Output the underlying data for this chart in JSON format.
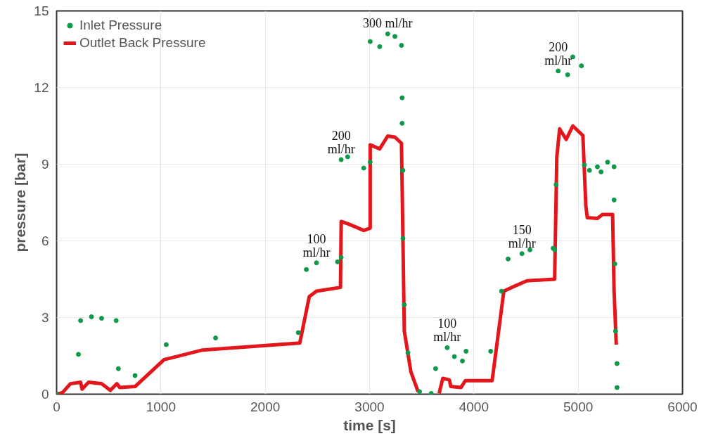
{
  "chart_data": {
    "type": "scatter",
    "xlabel": "time [s]",
    "ylabel": "pressure [bar]",
    "xlim": [
      0,
      6000
    ],
    "xticks": [
      0,
      1000,
      2000,
      3000,
      4000,
      5000,
      6000
    ],
    "ylim": [
      0,
      15
    ],
    "yticks": [
      0,
      3,
      6,
      9,
      12,
      15
    ],
    "grid": true,
    "legend": "top left",
    "series": [
      {
        "name": "Inlet Pressure",
        "color": "#0f9a4a",
        "marker": "circle",
        "x": [
          0,
          209,
          230,
          334,
          431,
          571,
          592,
          752,
          1051,
          1524,
          2317,
          2394,
          2491,
          2693,
          2728,
          2728,
          2790,
          2944,
          3006,
          3006,
          3097,
          3174,
          3243,
          3306,
          3312,
          3312,
          3320,
          3320,
          3333,
          3368,
          3479,
          3591,
          3633,
          3744,
          3813,
          3890,
          3925,
          4161,
          4266,
          4328,
          4461,
          4537,
          4760,
          4774,
          4788,
          4808,
          4899,
          4948,
          5031,
          5059,
          5108,
          5184,
          5219,
          5282,
          5344,
          5344,
          5351,
          5358,
          5372,
          5372
        ],
        "values": [
          0,
          1.56,
          2.88,
          3.03,
          2.97,
          2.88,
          1.0,
          0.73,
          1.94,
          2.2,
          2.41,
          4.88,
          5.14,
          5.18,
          5.35,
          9.18,
          9.29,
          8.85,
          9.08,
          13.8,
          13.6,
          14.1,
          14.0,
          13.65,
          11.6,
          10.6,
          8.76,
          6.1,
          3.5,
          1.62,
          0.1,
          0.03,
          1.0,
          1.82,
          1.47,
          1.3,
          1.68,
          1.68,
          4.03,
          5.29,
          5.5,
          5.65,
          5.71,
          5.65,
          8.2,
          12.65,
          12.5,
          13.2,
          12.85,
          8.97,
          8.76,
          8.9,
          8.7,
          9.08,
          8.9,
          7.6,
          5.1,
          2.47,
          1.2,
          0.26
        ]
      },
      {
        "name": "Outlet Back Pressure",
        "color": "#e3171b",
        "type": "line",
        "x": [
          0,
          56,
          132,
          230,
          244,
          306,
          431,
          515,
          578,
          605,
          752,
          1030,
          1399,
          2331,
          2422,
          2491,
          2721,
          2728,
          2804,
          2944,
          3006,
          3006,
          3097,
          3174,
          3243,
          3306,
          3333,
          3396,
          3465,
          3560,
          3667,
          3702,
          3765,
          3779,
          3876,
          3918,
          4175,
          4287,
          4363,
          4509,
          4774,
          4795,
          4822,
          4885,
          4948,
          5045,
          5073,
          5087,
          5184,
          5233,
          5330,
          5344,
          5365
        ],
        "values": [
          0,
          0.06,
          0.41,
          0.47,
          0.2,
          0.47,
          0.41,
          0.15,
          0.41,
          0.26,
          0.3,
          1.35,
          1.73,
          2.0,
          3.82,
          4.03,
          4.18,
          6.76,
          6.65,
          6.41,
          6.5,
          9.76,
          9.6,
          10.1,
          10.06,
          9.82,
          2.47,
          0.88,
          0.1,
          null,
          0.03,
          0.62,
          0.56,
          0.3,
          0.26,
          0.53,
          0.53,
          4.03,
          4.18,
          4.44,
          4.5,
          9.29,
          10.38,
          9.97,
          10.5,
          10.12,
          7.38,
          6.91,
          6.88,
          7.03,
          7.03,
          4.03,
          1.94
        ]
      }
    ],
    "annotations": [
      {
        "text": "100\nml/hr",
        "x": 2491,
        "y": 5.14
      },
      {
        "text": "200\nml/hr",
        "x": 2728,
        "y": 9.18
      },
      {
        "text": "300 ml/hr",
        "x": 3174,
        "y": 14.1
      },
      {
        "text": "100\nml/hr",
        "x": 3744,
        "y": 1.82
      },
      {
        "text": "150\nml/hr",
        "x": 4461,
        "y": 5.5
      },
      {
        "text": "200\nml/hr",
        "x": 4808,
        "y": 12.65
      }
    ]
  }
}
